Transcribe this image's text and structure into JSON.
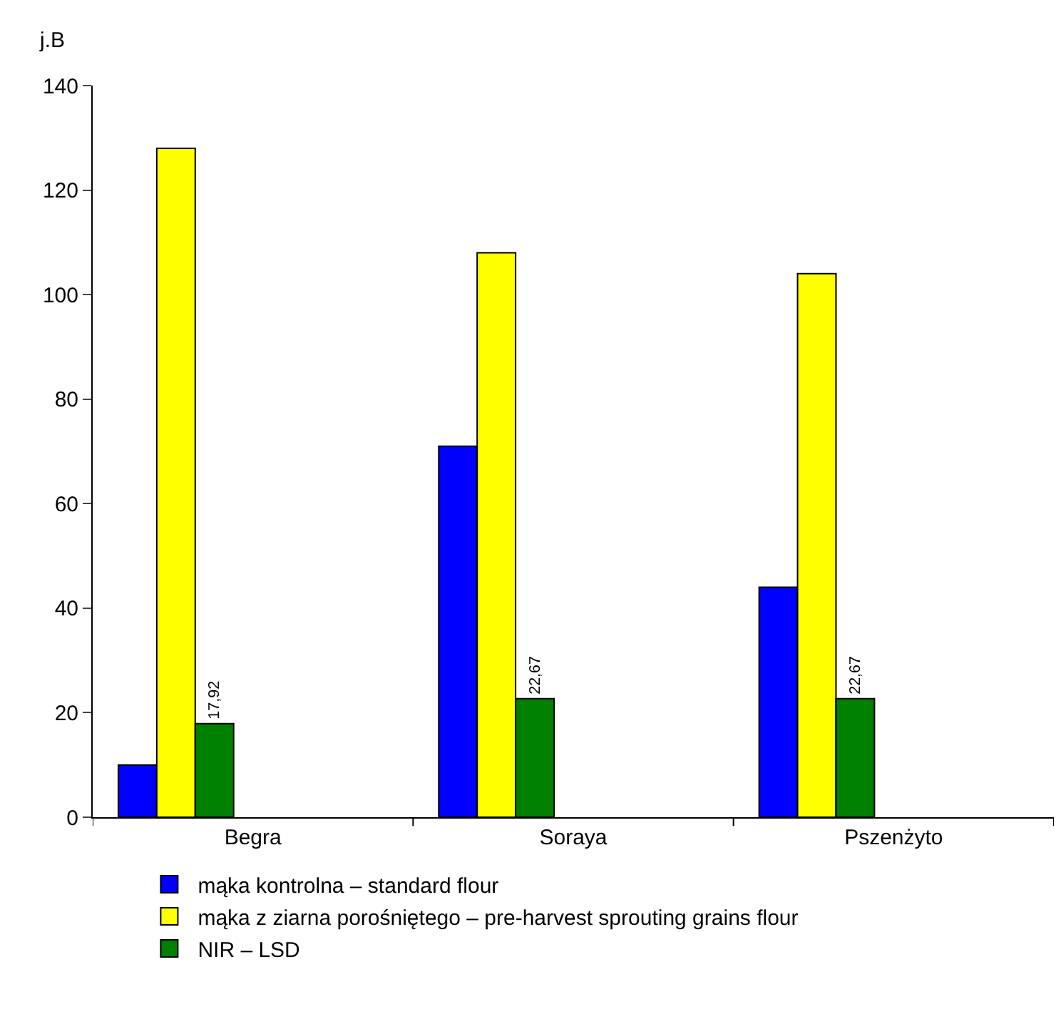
{
  "chart_data": {
    "type": "bar",
    "ylabel": "j.B",
    "categories": [
      "Begra",
      "Soraya",
      "Pszenżyto"
    ],
    "series": [
      {
        "name": "mąka kontrolna – standard flour",
        "color": "#0000ff",
        "values": [
          10,
          71,
          44
        ]
      },
      {
        "name": "mąka z ziarna porośniętego – pre-harvest sprouting grains flour",
        "color": "#ffff00",
        "values": [
          128,
          108,
          104
        ]
      },
      {
        "name": "NIR – LSD",
        "color": "#008000",
        "values": [
          17.92,
          22.67,
          22.67
        ],
        "value_labels": [
          "17,92",
          "22,67",
          "22,67"
        ]
      }
    ],
    "ylim": [
      0,
      140
    ],
    "yticks": [
      0,
      20,
      40,
      60,
      80,
      100,
      120,
      140
    ],
    "legend": "bottom"
  }
}
